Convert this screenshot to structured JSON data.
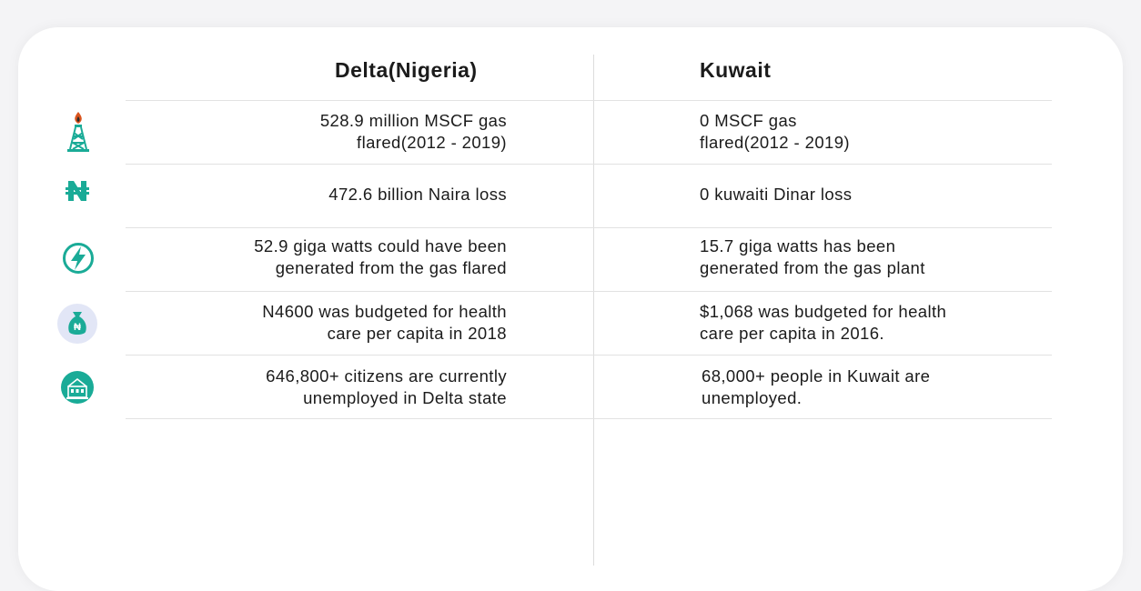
{
  "headers": {
    "left": "Delta(Nigeria)",
    "right": "Kuwait"
  },
  "rows": [
    {
      "icon": "oil-rig-flame-icon",
      "left": "528.9 million MSCF gas\nflared(2012 - 2019)",
      "right": "0 MSCF gas\nflared(2012 - 2019)"
    },
    {
      "icon": "naira-sign-icon",
      "left": "472.6 billion Naira loss",
      "right": "0 kuwaiti Dinar loss"
    },
    {
      "icon": "lightning-bolt-icon",
      "left": "52.9 giga watts could have been\ngenerated from the gas flared",
      "right": "15.7 giga watts has been\ngenerated from the gas plant"
    },
    {
      "icon": "naira-money-bag-icon",
      "left": "N4600 was budgeted for health\ncare per capita in 2018",
      "right": "$1,068 was budgeted for health\ncare per capita in 2016."
    },
    {
      "icon": "unemployed-citizens-icon",
      "left": "646,800+ citizens are currently\nunemployed in Delta state",
      "right": "68,000+ people in Kuwait are\nunemployed."
    }
  ],
  "colors": {
    "accent": "#1aab97",
    "flame": "#d9541e",
    "bag_bg": "#e2e6f6",
    "divider": "#e2e2e2"
  }
}
